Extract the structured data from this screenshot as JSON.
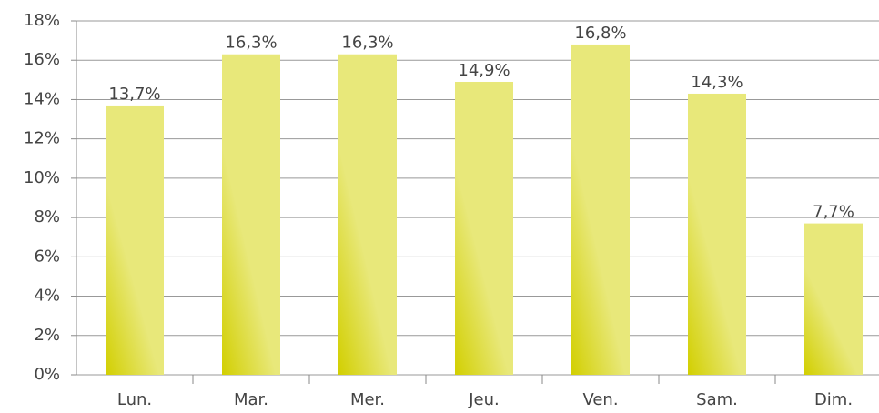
{
  "chart_data": {
    "type": "bar",
    "categories": [
      "Lun.",
      "Mar.",
      "Mer.",
      "Jeu.",
      "Ven.",
      "Sam.",
      "Dim."
    ],
    "values": [
      13.7,
      16.3,
      16.3,
      14.9,
      16.8,
      14.3,
      7.7
    ],
    "value_labels": [
      "13,7%",
      "16,3%",
      "16,3%",
      "14,9%",
      "16,8%",
      "14,3%",
      "7,7%"
    ],
    "color": "#e8e87a",
    "ylim": [
      0,
      18
    ],
    "yticks": [
      {
        "value": 0,
        "label": "0%"
      },
      {
        "value": 2,
        "label": "2%"
      },
      {
        "value": 4,
        "label": "4%"
      },
      {
        "value": 6,
        "label": "6%"
      },
      {
        "value": 8,
        "label": "8%"
      },
      {
        "value": 10,
        "label": "10%"
      },
      {
        "value": 12,
        "label": "12%"
      },
      {
        "value": 14,
        "label": "14%"
      },
      {
        "value": 16,
        "label": "16%"
      },
      {
        "value": 18,
        "label": "18%"
      }
    ],
    "grid": true
  }
}
